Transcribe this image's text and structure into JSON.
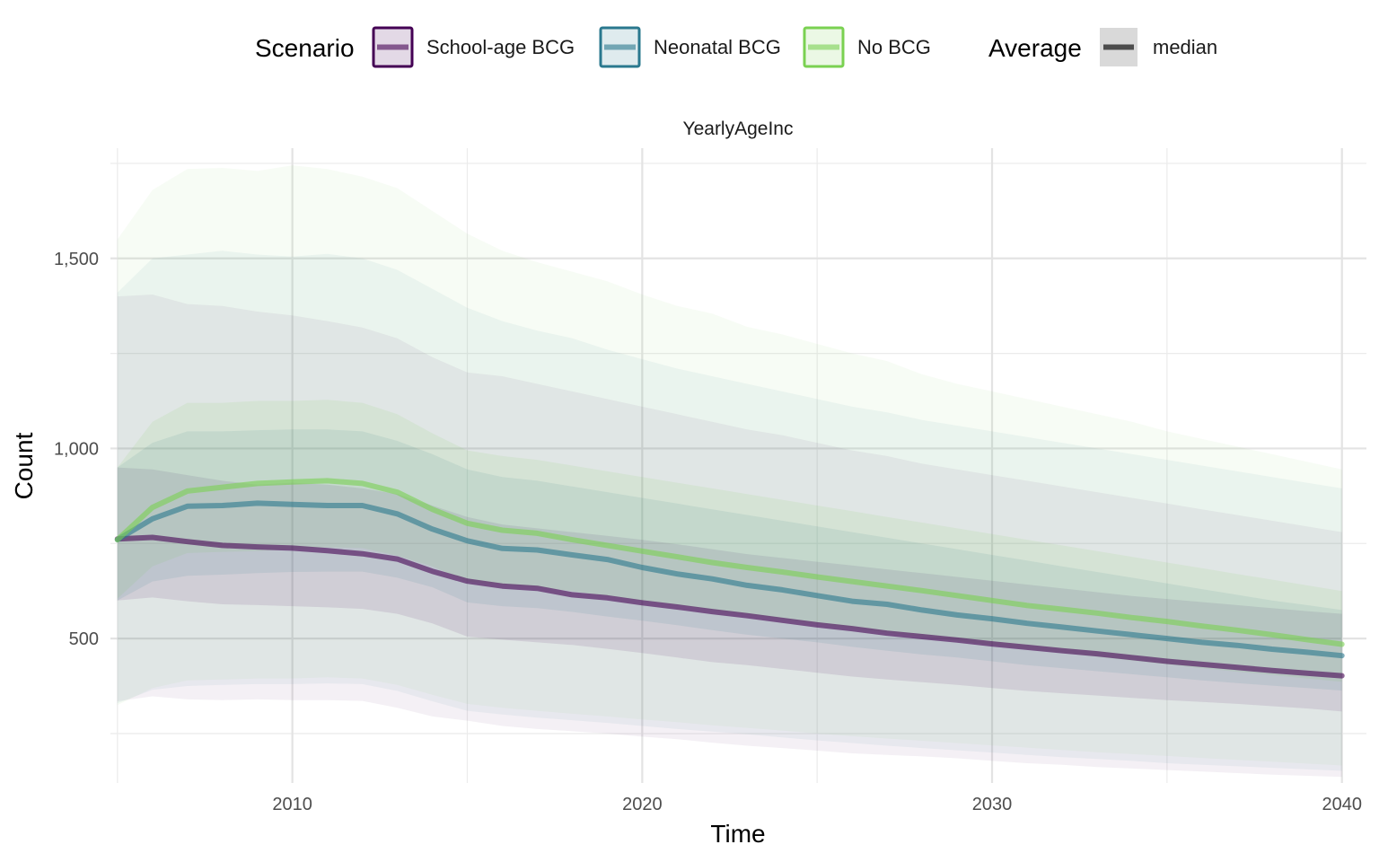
{
  "chart_data": {
    "type": "area",
    "facet_title": "YearlyAgeInc",
    "xlabel": "Time",
    "ylabel": "Count",
    "xlim": [
      2004.8,
      2040.7
    ],
    "ylim": [
      120,
      1790
    ],
    "x_ticks": [
      2010,
      2020,
      2030,
      2040
    ],
    "x_tick_labels": [
      "2010",
      "2020",
      "2030",
      "2040"
    ],
    "y_ticks": [
      500,
      1000,
      1500
    ],
    "y_tick_labels": [
      "500",
      "1,000",
      "1,500"
    ],
    "grid": true,
    "legend_position": "top",
    "legend": {
      "scenario_title": "Scenario",
      "average_title": "Average",
      "average_label": "median"
    },
    "x": [
      2005,
      2006,
      2007,
      2008,
      2009,
      2010,
      2011,
      2012,
      2013,
      2014,
      2015,
      2016,
      2017,
      2018,
      2019,
      2020,
      2021,
      2022,
      2023,
      2024,
      2025,
      2026,
      2027,
      2028,
      2029,
      2030,
      2031,
      2032,
      2033,
      2034,
      2035,
      2036,
      2037,
      2038,
      2039,
      2040
    ],
    "series": [
      {
        "name": "School-age BCG",
        "color": "#440154",
        "median": [
          762,
          766,
          755,
          745,
          741,
          738,
          731,
          723,
          709,
          677,
          651,
          638,
          632,
          615,
          607,
          594,
          583,
          571,
          560,
          548,
          536,
          526,
          514,
          505,
          496,
          486,
          477,
          468,
          460,
          450,
          440,
          432,
          424,
          416,
          409,
          402
        ],
        "inner_band": {
          "lower": [
            600,
            608,
            598,
            590,
            588,
            585,
            582,
            578,
            565,
            540,
            505,
            497,
            490,
            483,
            473,
            462,
            450,
            438,
            430,
            420,
            410,
            400,
            392,
            385,
            378,
            370,
            362,
            356,
            350,
            344,
            338,
            333,
            328,
            322,
            316,
            308
          ],
          "upper": [
            950,
            945,
            930,
            915,
            905,
            910,
            905,
            895,
            880,
            850,
            820,
            800,
            790,
            780,
            770,
            760,
            748,
            735,
            722,
            712,
            702,
            692,
            682,
            672,
            662,
            652,
            642,
            632,
            622,
            612,
            604,
            596,
            588,
            580,
            572,
            565
          ]
        },
        "outer_band": {
          "lower": [
            335,
            348,
            340,
            338,
            340,
            338,
            338,
            336,
            318,
            295,
            284,
            270,
            262,
            256,
            250,
            242,
            235,
            226,
            218,
            212,
            205,
            198,
            194,
            190,
            185,
            178,
            172,
            168,
            162,
            158,
            154,
            150,
            146,
            142,
            139,
            136
          ],
          "upper": [
            1400,
            1405,
            1380,
            1375,
            1360,
            1350,
            1335,
            1318,
            1290,
            1240,
            1200,
            1190,
            1170,
            1150,
            1130,
            1110,
            1090,
            1070,
            1050,
            1035,
            1015,
            995,
            980,
            960,
            945,
            930,
            915,
            900,
            885,
            870,
            855,
            840,
            825,
            810,
            795,
            780
          ]
        }
      },
      {
        "name": "Neonatal BCG",
        "color": "#2a788e",
        "median": [
          760,
          815,
          848,
          850,
          856,
          853,
          850,
          850,
          828,
          788,
          757,
          737,
          733,
          720,
          708,
          687,
          670,
          657,
          640,
          628,
          613,
          598,
          590,
          575,
          562,
          552,
          540,
          530,
          520,
          510,
          500,
          490,
          482,
          472,
          464,
          455
        ],
        "inner_band": {
          "lower": [
            600,
            650,
            665,
            668,
            672,
            675,
            676,
            676,
            660,
            635,
            595,
            585,
            580,
            570,
            558,
            547,
            535,
            522,
            510,
            500,
            490,
            478,
            468,
            458,
            450,
            440,
            430,
            422,
            414,
            406,
            398,
            390,
            383,
            376,
            370,
            363
          ],
          "upper": [
            950,
            1015,
            1045,
            1045,
            1048,
            1050,
            1050,
            1045,
            1020,
            985,
            945,
            925,
            915,
            900,
            885,
            870,
            855,
            840,
            825,
            810,
            795,
            780,
            765,
            750,
            735,
            720,
            705,
            690,
            675,
            660,
            645,
            630,
            615,
            600,
            588,
            575
          ]
        },
        "outer_band": {
          "lower": [
            330,
            365,
            375,
            378,
            380,
            380,
            382,
            380,
            362,
            335,
            310,
            300,
            292,
            285,
            278,
            270,
            262,
            255,
            248,
            240,
            232,
            225,
            218,
            212,
            206,
            200,
            194,
            188,
            183,
            178,
            172,
            168,
            164,
            160,
            156,
            152
          ],
          "upper": [
            1410,
            1500,
            1510,
            1520,
            1510,
            1505,
            1512,
            1500,
            1470,
            1420,
            1370,
            1335,
            1310,
            1290,
            1260,
            1235,
            1210,
            1190,
            1170,
            1150,
            1130,
            1110,
            1095,
            1075,
            1060,
            1045,
            1030,
            1015,
            1000,
            985,
            970,
            955,
            940,
            925,
            910,
            895
          ]
        }
      },
      {
        "name": "No BCG",
        "color": "#7ad151",
        "median": [
          760,
          845,
          888,
          898,
          908,
          912,
          915,
          908,
          885,
          840,
          803,
          785,
          777,
          760,
          745,
          730,
          715,
          700,
          687,
          675,
          662,
          650,
          638,
          626,
          613,
          600,
          587,
          577,
          567,
          555,
          545,
          533,
          522,
          510,
          497,
          485
        ],
        "inner_band": {
          "lower": [
            605,
            690,
            725,
            728,
            730,
            735,
            740,
            738,
            718,
            690,
            650,
            642,
            635,
            625,
            612,
            600,
            588,
            575,
            563,
            551,
            539,
            527,
            516,
            505,
            494,
            483,
            472,
            462,
            452,
            442,
            432,
            422,
            413,
            404,
            395,
            386
          ],
          "upper": [
            950,
            1070,
            1120,
            1120,
            1125,
            1125,
            1128,
            1120,
            1090,
            1040,
            995,
            980,
            970,
            955,
            940,
            925,
            910,
            895,
            880,
            865,
            850,
            835,
            820,
            805,
            790,
            775,
            760,
            745,
            730,
            715,
            700,
            685,
            670,
            655,
            640,
            625
          ]
        },
        "outer_band": {
          "lower": [
            325,
            370,
            390,
            392,
            395,
            395,
            398,
            395,
            378,
            352,
            328,
            318,
            310,
            302,
            295,
            287,
            280,
            272,
            265,
            258,
            250,
            243,
            237,
            231,
            225,
            219,
            213,
            207,
            201,
            196,
            191,
            186,
            181,
            176,
            171,
            166
          ],
          "upper": [
            1550,
            1680,
            1735,
            1738,
            1730,
            1745,
            1735,
            1715,
            1685,
            1625,
            1565,
            1520,
            1490,
            1465,
            1440,
            1405,
            1375,
            1355,
            1320,
            1300,
            1275,
            1250,
            1230,
            1195,
            1170,
            1150,
            1130,
            1110,
            1090,
            1070,
            1045,
            1025,
            1005,
            985,
            965,
            945
          ]
        }
      }
    ]
  }
}
